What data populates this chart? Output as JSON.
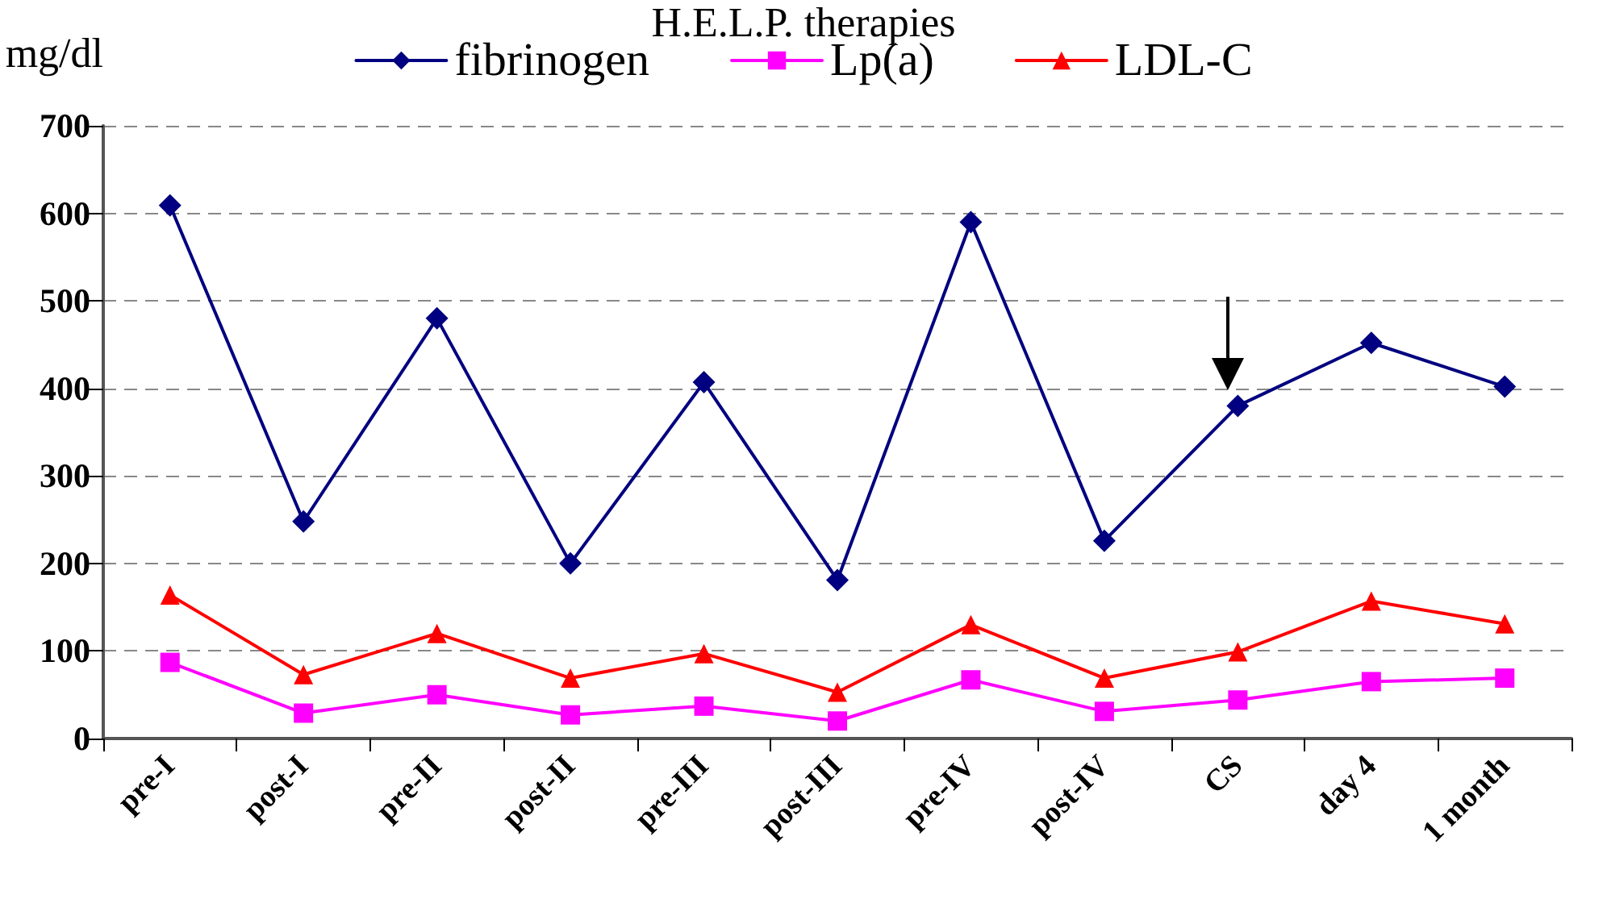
{
  "chart_data": {
    "type": "line",
    "title": "H.E.L.P. therapies",
    "ylabel": "mg/dl",
    "categories": [
      "pre-I",
      "post-I",
      "pre-II",
      "post-II",
      "pre-III",
      "post-III",
      "pre-IV",
      "post-IV",
      "CS",
      "day 4",
      "1 month"
    ],
    "series": [
      {
        "name": "fibrinogen",
        "color": "#000080",
        "marker": "diamond",
        "values": [
          609,
          248,
          480,
          200,
          407,
          181,
          590,
          226,
          380,
          452,
          402
        ]
      },
      {
        "name": "Lp(a)",
        "color": "#ff00ff",
        "marker": "square",
        "values": [
          87,
          29,
          50,
          27,
          37,
          20,
          67,
          31,
          44,
          65,
          69
        ]
      },
      {
        "name": "LDL-C",
        "color": "#ff0000",
        "marker": "triangle",
        "values": [
          164,
          73,
          120,
          69,
          97,
          53,
          130,
          69,
          99,
          157,
          131
        ]
      }
    ],
    "ylim": [
      0,
      700
    ],
    "yticks": [
      0,
      100,
      200,
      300,
      400,
      500,
      600,
      700
    ],
    "grid": "y",
    "legend": "top",
    "line_style": "solid"
  }
}
